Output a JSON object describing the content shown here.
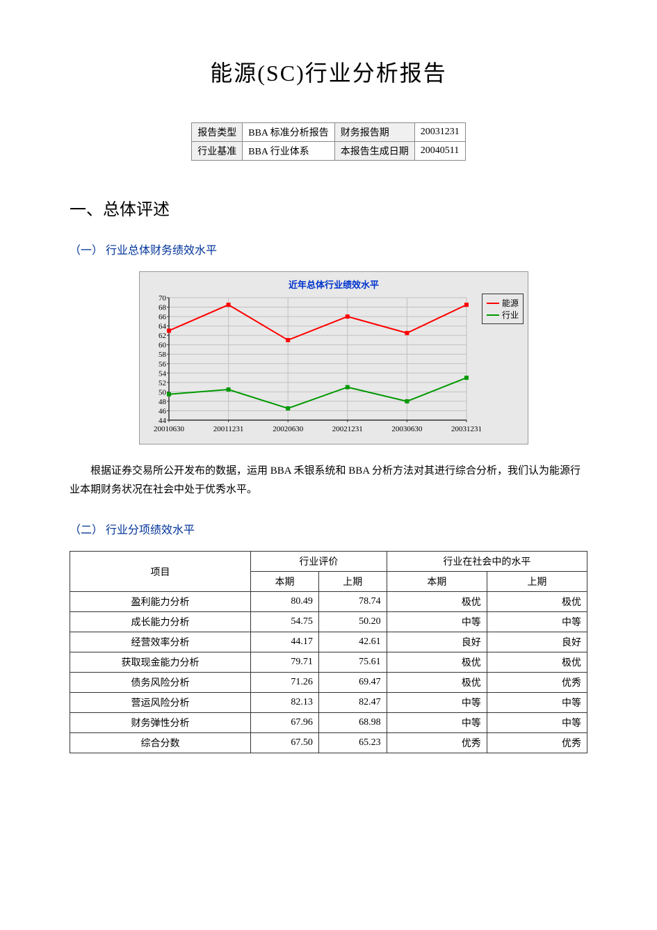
{
  "title": "能源(SC)行业分析报告",
  "meta": {
    "r1c1": "报告类型",
    "r1c2": "BBA 标准分析报告",
    "r1c3": "财务报告期",
    "r1c4": "20031231",
    "r2c1": "行业基准",
    "r2c2": "BBA 行业体系",
    "r2c3": "本报告生成日期",
    "r2c4": "20040511"
  },
  "section1": "一、总体评述",
  "sub1": "（一）  行业总体财务绩效水平",
  "chart": {
    "type": "line",
    "title": "近年总体行业绩效水平",
    "background_color": "#e8e8e8",
    "grid_color": "#c0c0c0",
    "axis_color": "#333333",
    "title_color": "#0033cc",
    "title_fontsize": 13,
    "tick_fontsize": 11,
    "x_categories": [
      "20010630",
      "20011231",
      "20020630",
      "20021231",
      "20030630",
      "20031231"
    ],
    "y_min": 44,
    "y_max": 70,
    "y_step": 2,
    "series": [
      {
        "name": "能源",
        "color": "#ff0000",
        "line_width": 2,
        "marker": "square",
        "values": [
          63.0,
          68.5,
          61.0,
          66.0,
          62.5,
          68.5
        ]
      },
      {
        "name": "行业",
        "color": "#009900",
        "line_width": 2,
        "marker": "square",
        "values": [
          49.5,
          50.5,
          46.5,
          51.0,
          48.0,
          53.0
        ]
      }
    ],
    "legend": [
      "能源",
      "行业"
    ]
  },
  "paragraph": "根据证券交易所公开发布的数据，运用 BBA 禾银系统和 BBA 分析方法对其进行综合分析，我们认为能源行业本期财务状况在社会中处于优秀水平。",
  "sub2": "（二）  行业分项绩效水平",
  "table": {
    "head": {
      "item": "项目",
      "eval": "行业评价",
      "level": "行业在社会中的水平",
      "cur": "本期",
      "prev": "上期"
    },
    "rows": [
      {
        "name": "盈利能力分析",
        "cur": "80.49",
        "prev": "78.74",
        "lcur": "极优",
        "lprev": "极优"
      },
      {
        "name": "成长能力分析",
        "cur": "54.75",
        "prev": "50.20",
        "lcur": "中等",
        "lprev": "中等"
      },
      {
        "name": "经营效率分析",
        "cur": "44.17",
        "prev": "42.61",
        "lcur": "良好",
        "lprev": "良好"
      },
      {
        "name": "获取现金能力分析",
        "cur": "79.71",
        "prev": "75.61",
        "lcur": "极优",
        "lprev": "极优"
      },
      {
        "name": "债务风险分析",
        "cur": "71.26",
        "prev": "69.47",
        "lcur": "极优",
        "lprev": "优秀"
      },
      {
        "name": "营运风险分析",
        "cur": "82.13",
        "prev": "82.47",
        "lcur": "中等",
        "lprev": "中等"
      },
      {
        "name": "财务弹性分析",
        "cur": "67.96",
        "prev": "68.98",
        "lcur": "中等",
        "lprev": "中等"
      },
      {
        "name": "综合分数",
        "cur": "67.50",
        "prev": "65.23",
        "lcur": "优秀",
        "lprev": "优秀"
      }
    ]
  }
}
